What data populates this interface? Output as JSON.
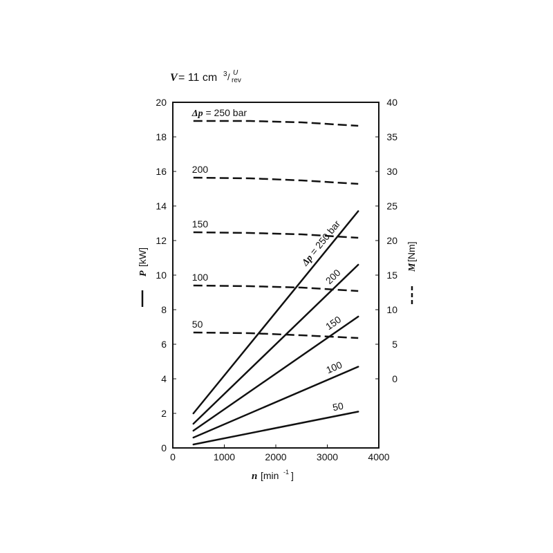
{
  "header": {
    "volume_symbol": "V",
    "volume_value": "= 11 cm",
    "unit_superscript": "3",
    "unit_slash": "/",
    "unit_numerator": "U",
    "unit_denominator": "rev"
  },
  "chart_data": {
    "type": "line",
    "xlabel": {
      "symbol": "n",
      "unit": "[min",
      "exp": "-1",
      "close": "]"
    },
    "ylabel_left": {
      "symbol": "P",
      "unit": "[kW]"
    },
    "ylabel_right": {
      "symbol": "M",
      "unit": "[Nm]"
    },
    "xlim": [
      0,
      4000
    ],
    "ylim_left": [
      0,
      20
    ],
    "ylim_right": [
      -10,
      40
    ],
    "x_ticks": [
      0,
      1000,
      2000,
      3000,
      4000
    ],
    "x_tick_labels": [
      "0",
      "1000",
      "2000",
      "3000",
      "4000"
    ],
    "y_left_ticks": [
      0,
      2,
      4,
      6,
      8,
      10,
      12,
      14,
      16,
      18,
      20
    ],
    "y_left_tick_labels": [
      "0",
      "2",
      "4",
      "6",
      "8",
      "10",
      "12",
      "14",
      "16",
      "18",
      "20"
    ],
    "y_right_ticks": [
      0,
      5,
      10,
      15,
      20,
      25,
      30,
      35,
      40
    ],
    "y_right_tick_labels": [
      "0",
      "5",
      "10",
      "15",
      "20",
      "25",
      "30",
      "35",
      "40"
    ],
    "grid": false,
    "power_series": [
      {
        "label": "50",
        "axis": "left",
        "style": "solid",
        "x": [
          400,
          3600
        ],
        "y": [
          0.2,
          2.1
        ]
      },
      {
        "label": "100",
        "axis": "left",
        "style": "solid",
        "x": [
          400,
          3600
        ],
        "y": [
          0.6,
          4.7
        ]
      },
      {
        "label": "150",
        "axis": "left",
        "style": "solid",
        "x": [
          400,
          3600
        ],
        "y": [
          1.0,
          7.6
        ]
      },
      {
        "label": "200",
        "axis": "left",
        "style": "solid",
        "x": [
          400,
          3600
        ],
        "y": [
          1.4,
          10.6
        ]
      },
      {
        "label": "250 bar",
        "prefix": "Δp = ",
        "axis": "left",
        "style": "solid",
        "x": [
          400,
          3600
        ],
        "y": [
          2.0,
          13.7
        ]
      }
    ],
    "torque_series": [
      {
        "label": "50",
        "axis": "right",
        "style": "dashed",
        "x": [
          400,
          1500,
          2500,
          3600
        ],
        "y": [
          6.7,
          6.6,
          6.3,
          5.9
        ]
      },
      {
        "label": "100",
        "axis": "right",
        "style": "dashed",
        "x": [
          400,
          1500,
          2500,
          3600
        ],
        "y": [
          13.5,
          13.4,
          13.2,
          12.7
        ]
      },
      {
        "label": "150",
        "axis": "right",
        "style": "dashed",
        "x": [
          400,
          1500,
          2500,
          3600
        ],
        "y": [
          21.2,
          21.1,
          20.9,
          20.4
        ]
      },
      {
        "label": "200",
        "axis": "right",
        "style": "dashed",
        "x": [
          400,
          1500,
          2500,
          3600
        ],
        "y": [
          29.1,
          29.0,
          28.7,
          28.2
        ]
      },
      {
        "label": "250 bar",
        "prefix": "Δp = ",
        "axis": "right",
        "style": "dashed",
        "x": [
          400,
          1500,
          2500,
          3600
        ],
        "y": [
          37.3,
          37.3,
          37.1,
          36.6
        ]
      }
    ]
  }
}
